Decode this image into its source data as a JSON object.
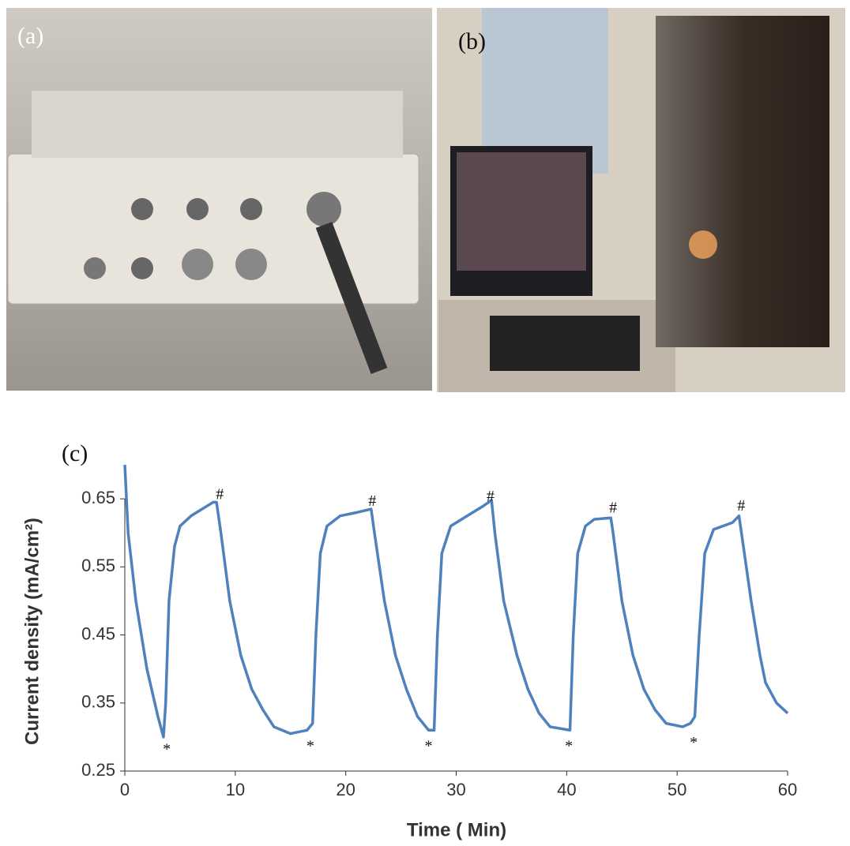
{
  "panels": {
    "a": "(a)",
    "b": "(b)"
  },
  "chart_data": {
    "type": "line",
    "panel_label": "(c)",
    "x_label": "Time ( Min)",
    "y_label": "Current density (mA/cm²)",
    "xlim": [
      0,
      60
    ],
    "xticks": [
      0,
      10,
      20,
      30,
      40,
      50,
      60
    ],
    "ylim": [
      0.25,
      0.7
    ],
    "yticks": [
      0.25,
      0.35,
      0.45,
      0.55,
      0.65
    ],
    "x": [
      0,
      0.3,
      1,
      2,
      3,
      3.5,
      3.7,
      4,
      4.5,
      5,
      6,
      7,
      8,
      8.3,
      8.7,
      9.5,
      10.5,
      11.5,
      12.5,
      13.5,
      15,
      16.5,
      17,
      17.3,
      17.7,
      18.3,
      19.5,
      21,
      22.3,
      22.6,
      23.5,
      24.5,
      25.5,
      26.5,
      27.5,
      28,
      28.3,
      28.7,
      29.5,
      31,
      32.5,
      33.2,
      33.5,
      34.3,
      35.5,
      36.5,
      37.5,
      38.5,
      40.3,
      40.6,
      41,
      41.7,
      42.5,
      44,
      44.2,
      45,
      46,
      47,
      48,
      49,
      50.5,
      51.2,
      51.6,
      52,
      52.5,
      53.3,
      55,
      55.6,
      56,
      56.7,
      57.5,
      58,
      59,
      60
    ],
    "series": [
      {
        "color": "#4f81bd",
        "values": [
          0.7,
          0.6,
          0.5,
          0.4,
          0.33,
          0.3,
          0.35,
          0.5,
          0.58,
          0.61,
          0.625,
          0.635,
          0.645,
          0.645,
          0.6,
          0.5,
          0.42,
          0.37,
          0.34,
          0.315,
          0.305,
          0.31,
          0.32,
          0.45,
          0.57,
          0.61,
          0.625,
          0.63,
          0.635,
          0.6,
          0.5,
          0.42,
          0.37,
          0.33,
          0.31,
          0.31,
          0.45,
          0.57,
          0.61,
          0.625,
          0.64,
          0.648,
          0.6,
          0.5,
          0.42,
          0.37,
          0.335,
          0.315,
          0.31,
          0.45,
          0.57,
          0.61,
          0.62,
          0.622,
          0.6,
          0.5,
          0.42,
          0.37,
          0.34,
          0.32,
          0.315,
          0.32,
          0.33,
          0.45,
          0.57,
          0.605,
          0.615,
          0.625,
          0.58,
          0.5,
          0.42,
          0.38,
          0.35,
          0.335
        ]
      }
    ],
    "annotations": [
      {
        "text": "#",
        "x": 8.6,
        "y": 0.655
      },
      {
        "text": "#",
        "x": 22.4,
        "y": 0.645
      },
      {
        "text": "#",
        "x": 33.1,
        "y": 0.652
      },
      {
        "text": "#",
        "x": 44.2,
        "y": 0.635
      },
      {
        "text": "#",
        "x": 55.8,
        "y": 0.638
      },
      {
        "text": "*",
        "x": 3.8,
        "y": 0.28
      },
      {
        "text": "*",
        "x": 16.8,
        "y": 0.285
      },
      {
        "text": "*",
        "x": 27.5,
        "y": 0.285
      },
      {
        "text": "*",
        "x": 40.2,
        "y": 0.285
      },
      {
        "text": "*",
        "x": 51.5,
        "y": 0.29
      }
    ]
  }
}
